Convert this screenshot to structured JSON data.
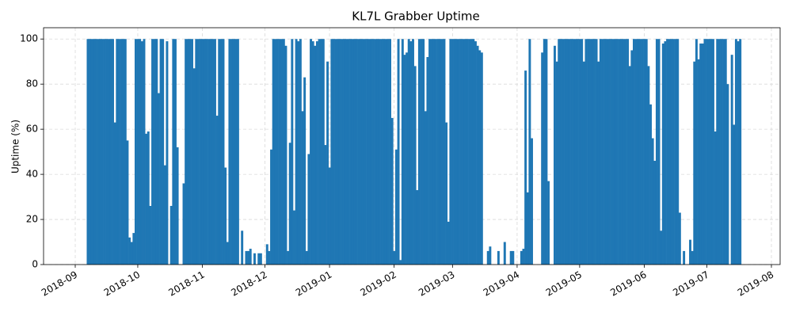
{
  "chart_data": {
    "type": "bar",
    "title": "KL7L Grabber Uptime",
    "y_label": "Uptime (%)",
    "color": "#1f77b4",
    "grid": true,
    "ylim": [
      0,
      105
    ],
    "yticks": [
      0,
      20,
      40,
      60,
      80,
      100
    ],
    "categories": [
      "2018-09",
      null,
      null,
      null,
      null,
      null,
      null,
      null,
      null,
      null,
      null,
      null,
      null,
      null,
      null,
      null,
      null,
      null,
      null,
      null,
      null,
      null,
      null,
      null,
      null,
      null,
      null,
      null,
      null,
      null,
      "2018-10",
      null,
      null,
      null,
      null,
      null,
      null,
      null,
      null,
      null,
      null,
      null,
      null,
      null,
      null,
      null,
      null,
      null,
      null,
      null,
      null,
      null,
      null,
      null,
      null,
      null,
      null,
      null,
      null,
      null,
      null,
      "2018-11",
      null,
      null,
      null,
      null,
      null,
      null,
      null,
      null,
      null,
      null,
      null,
      null,
      null,
      null,
      null,
      null,
      null,
      null,
      null,
      null,
      null,
      null,
      null,
      null,
      null,
      null,
      null,
      null,
      null,
      "2018-12",
      null,
      null,
      null,
      null,
      null,
      null,
      null,
      null,
      null,
      null,
      null,
      null,
      null,
      null,
      null,
      null,
      null,
      null,
      null,
      null,
      null,
      null,
      null,
      null,
      null,
      null,
      null,
      null,
      null,
      null,
      "2019-01",
      null,
      null,
      null,
      null,
      null,
      null,
      null,
      null,
      null,
      null,
      null,
      null,
      null,
      null,
      null,
      null,
      null,
      null,
      null,
      null,
      null,
      null,
      null,
      null,
      null,
      null,
      null,
      null,
      null,
      null,
      "2019-02",
      null,
      null,
      null,
      null,
      null,
      null,
      null,
      null,
      null,
      null,
      null,
      null,
      null,
      null,
      null,
      null,
      null,
      null,
      null,
      null,
      null,
      null,
      null,
      null,
      null,
      null,
      null,
      "2019-03",
      null,
      null,
      null,
      null,
      null,
      null,
      null,
      null,
      null,
      null,
      null,
      null,
      null,
      null,
      null,
      null,
      null,
      null,
      null,
      null,
      null,
      null,
      null,
      null,
      null,
      null,
      null,
      null,
      null,
      null,
      "2019-04",
      null,
      null,
      null,
      null,
      null,
      null,
      null,
      null,
      null,
      null,
      null,
      null,
      null,
      null,
      null,
      null,
      null,
      null,
      null,
      null,
      null,
      null,
      null,
      null,
      null,
      null,
      null,
      null,
      null,
      "2019-05",
      null,
      null,
      null,
      null,
      null,
      null,
      null,
      null,
      null,
      null,
      null,
      null,
      null,
      null,
      null,
      null,
      null,
      null,
      null,
      null,
      null,
      null,
      null,
      null,
      null,
      null,
      null,
      null,
      null,
      null,
      "2019-06",
      null,
      null,
      null,
      null,
      null,
      null,
      null,
      null,
      null,
      null,
      null,
      null,
      null,
      null,
      null,
      null,
      null,
      null,
      null,
      null,
      null,
      null,
      null,
      null,
      null,
      null,
      null,
      null,
      null,
      "2019-07",
      null,
      null,
      null,
      null,
      null,
      null,
      null,
      null,
      null,
      null,
      null,
      null,
      null,
      null,
      null,
      null,
      null,
      null,
      null,
      null,
      null,
      null,
      null,
      null,
      null,
      null,
      null,
      null,
      null,
      null,
      "2019-08"
    ],
    "values": [
      null,
      null,
      null,
      null,
      null,
      null,
      100,
      100,
      100,
      100,
      100,
      100,
      100,
      100,
      100,
      100,
      100,
      100,
      100,
      63,
      100,
      100,
      100,
      100,
      100,
      55,
      12,
      10,
      14,
      100,
      100,
      100,
      99,
      100,
      58,
      59,
      26,
      100,
      100,
      100,
      76,
      100,
      100,
      44,
      99,
      null,
      26,
      100,
      100,
      52,
      null,
      null,
      36,
      100,
      100,
      100,
      100,
      87,
      100,
      100,
      100,
      100,
      100,
      100,
      100,
      100,
      100,
      100,
      66,
      100,
      100,
      100,
      43,
      10,
      100,
      100,
      100,
      100,
      100,
      null,
      15,
      null,
      6,
      6,
      7,
      null,
      5,
      null,
      5,
      5,
      null,
      null,
      9,
      6,
      51,
      100,
      100,
      100,
      100,
      100,
      100,
      97,
      6,
      54,
      100,
      24,
      100,
      99,
      100,
      68,
      83,
      6,
      49,
      100,
      99,
      97,
      99,
      100,
      100,
      100,
      53,
      90,
      43,
      100,
      100,
      100,
      100,
      100,
      100,
      100,
      100,
      100,
      100,
      100,
      100,
      100,
      100,
      100,
      100,
      100,
      100,
      100,
      100,
      100,
      100,
      100,
      100,
      100,
      100,
      100,
      100,
      100,
      65,
      6,
      51,
      100,
      2,
      100,
      93,
      94,
      100,
      99,
      100,
      88,
      33,
      100,
      100,
      100,
      68,
      92,
      100,
      100,
      100,
      100,
      100,
      100,
      100,
      100,
      63,
      19,
      100,
      100,
      100,
      100,
      100,
      100,
      100,
      100,
      100,
      100,
      100,
      100,
      99,
      97,
      95,
      94,
      null,
      null,
      6,
      8,
      null,
      null,
      null,
      6,
      null,
      null,
      10,
      null,
      null,
      6,
      6,
      null,
      null,
      null,
      6,
      7,
      86,
      32,
      100,
      56,
      null,
      null,
      null,
      null,
      94,
      100,
      100,
      37,
      null,
      null,
      97,
      90,
      100,
      100,
      100,
      100,
      100,
      100,
      100,
      100,
      100,
      100,
      100,
      100,
      90,
      100,
      100,
      100,
      100,
      100,
      100,
      90,
      100,
      100,
      100,
      100,
      100,
      100,
      100,
      100,
      100,
      100,
      100,
      100,
      100,
      100,
      88,
      95,
      100,
      100,
      100,
      100,
      100,
      100,
      100,
      88,
      71,
      56,
      46,
      100,
      100,
      15,
      98,
      99,
      100,
      100,
      100,
      100,
      100,
      100,
      23,
      null,
      6,
      null,
      null,
      11,
      6,
      90,
      100,
      91,
      98,
      98,
      100,
      100,
      100,
      100,
      100,
      59,
      100,
      100,
      100,
      100,
      100,
      80,
      null,
      93,
      62,
      100,
      99,
      100,
      null,
      null,
      null,
      null,
      null,
      null,
      null,
      null,
      null,
      null,
      null,
      null,
      null,
      null,
      null
    ]
  }
}
